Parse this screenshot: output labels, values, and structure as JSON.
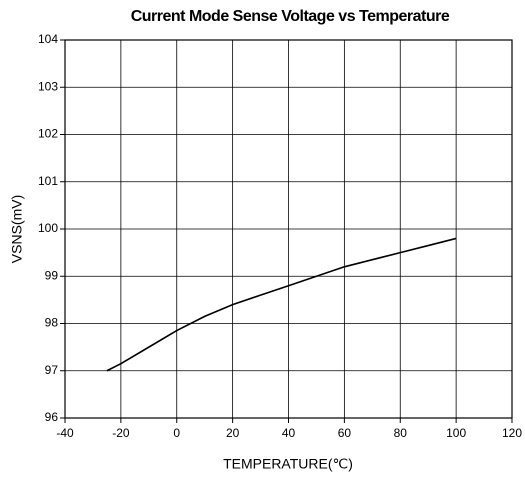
{
  "chart_data": {
    "type": "line",
    "title": "Current Mode Sense Voltage vs Temperature",
    "x_label": "TEMPERATURE(℃)",
    "y_label": "VSNS(mV)",
    "x": [
      -25,
      -20,
      -10,
      0,
      10,
      20,
      30,
      40,
      50,
      60,
      70,
      80,
      90,
      100
    ],
    "series": [
      {
        "name": "VSNS",
        "color": "#000000",
        "values": [
          97.0,
          97.15,
          97.5,
          97.85,
          98.15,
          98.4,
          98.6,
          98.8,
          99.0,
          99.2,
          99.35,
          99.5,
          99.65,
          99.8
        ]
      }
    ],
    "xlim": [
      -40,
      120
    ],
    "xticks": [
      -40,
      -20,
      0,
      20,
      40,
      60,
      80,
      100,
      120
    ],
    "ylim": [
      96,
      104
    ],
    "yticks": [
      96,
      97,
      98,
      99,
      100,
      101,
      102,
      103,
      104
    ],
    "grid": true
  }
}
